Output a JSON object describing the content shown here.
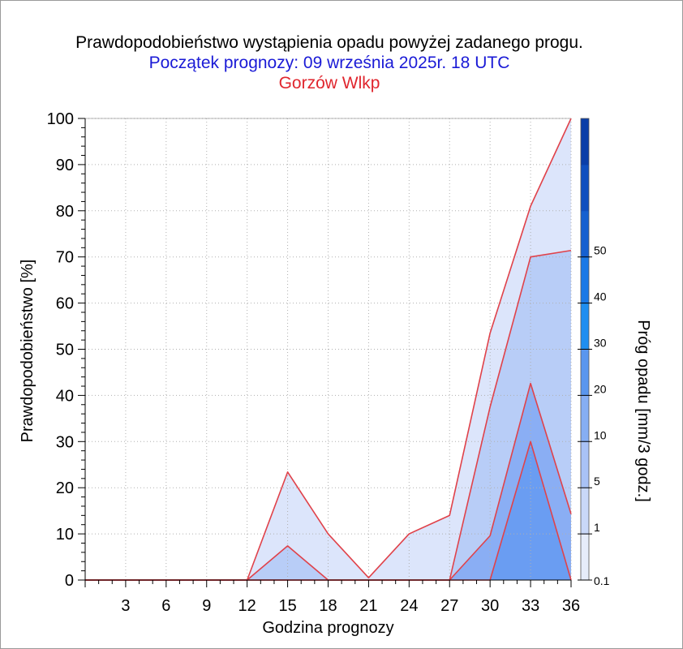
{
  "header": {
    "title": "Prawdopodobieństwo wystąpienia opadu powyżej zadanego progu.",
    "subtitle": "Początek prognozy: 09 września 2025r. 18 UTC",
    "location": "Gorzów Wlkp"
  },
  "colors": {
    "title": "#000000",
    "subtitle": "#1a1ad6",
    "location": "#e0262e",
    "series_outline": "#e0424a",
    "grid": "#b0b0b0"
  },
  "chart_data": {
    "type": "area",
    "xlabel": "Godzina prognozy",
    "ylabel": "Prawdopodobieństwo [%]",
    "colorbar_label": "Próg opadu [mm/3 godz.]",
    "xlim": [
      0,
      36
    ],
    "ylim": [
      0,
      100
    ],
    "x_ticks": [
      3,
      6,
      9,
      12,
      15,
      18,
      21,
      24,
      27,
      30,
      33,
      36
    ],
    "y_ticks": [
      0,
      10,
      20,
      30,
      40,
      50,
      60,
      70,
      80,
      90,
      100
    ],
    "grid": true,
    "x": [
      0,
      3,
      6,
      9,
      12,
      15,
      18,
      21,
      24,
      27,
      30,
      33,
      36
    ],
    "series": [
      {
        "threshold": 0.1,
        "color": "#dce5fb",
        "values": [
          0,
          0,
          0,
          0,
          0,
          23.4,
          10,
          0.5,
          10,
          14,
          53.5,
          81,
          100
        ]
      },
      {
        "threshold": 1,
        "color": "#b8cdf7",
        "values": [
          0,
          0,
          0,
          0,
          0,
          7.4,
          0,
          0,
          0,
          0,
          37.5,
          70,
          71.4
        ]
      },
      {
        "threshold": 5,
        "color": "#8aaef4",
        "values": [
          0,
          0,
          0,
          0,
          0,
          0,
          0,
          0,
          0,
          0,
          9.6,
          42.6,
          14.3
        ]
      },
      {
        "threshold": 10,
        "color": "#6a9df2",
        "values": [
          0,
          0,
          0,
          0,
          0,
          0,
          0,
          0,
          0,
          0,
          0,
          30,
          0
        ]
      }
    ],
    "colorbar": {
      "tick_labels": [
        "0.1",
        "1",
        "5",
        "10",
        "20",
        "30",
        "40",
        "50"
      ],
      "bands": [
        "#e6ecfa",
        "#c9d8f8",
        "#a9c2f6",
        "#86aef3",
        "#5a96ee",
        "#1f8ef0",
        "#1a79e6",
        "#1560d0",
        "#0f4fbf",
        "#0a3ea8"
      ]
    }
  }
}
